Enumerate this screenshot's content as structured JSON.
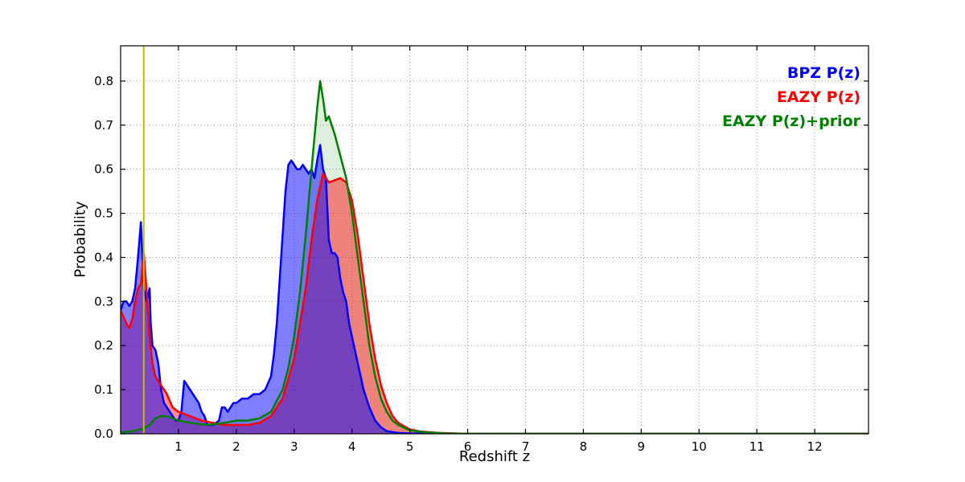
{
  "figure": {
    "background": "#ffffff"
  },
  "chart_data": {
    "type": "area",
    "title": "",
    "xlabel": "Redshift z",
    "ylabel": "Probability",
    "xlim": [
      0,
      12.93
    ],
    "ylim": [
      0,
      0.88
    ],
    "xticks": [
      1,
      2,
      3,
      4,
      5,
      6,
      7,
      8,
      9,
      10,
      11,
      12
    ],
    "xtick_labels": [
      "1",
      "2",
      "3",
      "4",
      "5",
      "6",
      "7",
      "8",
      "9",
      "10",
      "11",
      "12"
    ],
    "yticks": [
      0,
      0.1,
      0.2,
      0.3,
      0.4,
      0.5,
      0.6,
      0.7,
      0.8
    ],
    "ytick_labels": [
      "0.0",
      "0.1",
      "0.2",
      "0.3",
      "0.4",
      "0.5",
      "0.6",
      "0.7",
      "0.8"
    ],
    "grid": true,
    "grid_style": "dotted",
    "grid_color": "#999999",
    "axis_color": "#000000",
    "legend_position": "upper right",
    "marker": {
      "x": 0.4,
      "color": "#bfbf00"
    },
    "series": [
      {
        "id": "bpz",
        "label": "BPZ P(z)",
        "color": "#0000ff",
        "fill_opacity": 0.5,
        "points": [
          [
            0,
            0.28
          ],
          [
            0.05,
            0.3
          ],
          [
            0.1,
            0.3
          ],
          [
            0.15,
            0.29
          ],
          [
            0.2,
            0.3
          ],
          [
            0.25,
            0.33
          ],
          [
            0.3,
            0.4
          ],
          [
            0.35,
            0.48
          ],
          [
            0.4,
            0.33
          ],
          [
            0.45,
            0.3
          ],
          [
            0.5,
            0.33
          ],
          [
            0.52,
            0.25
          ],
          [
            0.55,
            0.2
          ],
          [
            0.6,
            0.19
          ],
          [
            0.65,
            0.16
          ],
          [
            0.7,
            0.1
          ],
          [
            0.75,
            0.07
          ],
          [
            0.8,
            0.06
          ],
          [
            0.85,
            0.05
          ],
          [
            0.9,
            0.04
          ],
          [
            0.95,
            0.03
          ],
          [
            1.0,
            0.03
          ],
          [
            1.05,
            0.05
          ],
          [
            1.1,
            0.12
          ],
          [
            1.15,
            0.11
          ],
          [
            1.2,
            0.1
          ],
          [
            1.25,
            0.09
          ],
          [
            1.3,
            0.08
          ],
          [
            1.35,
            0.07
          ],
          [
            1.4,
            0.05
          ],
          [
            1.45,
            0.04
          ],
          [
            1.5,
            0.02
          ],
          [
            1.6,
            0.02
          ],
          [
            1.7,
            0.03
          ],
          [
            1.75,
            0.06
          ],
          [
            1.8,
            0.06
          ],
          [
            1.85,
            0.05
          ],
          [
            1.9,
            0.06
          ],
          [
            1.95,
            0.07
          ],
          [
            2.0,
            0.07
          ],
          [
            2.1,
            0.08
          ],
          [
            2.2,
            0.08
          ],
          [
            2.3,
            0.09
          ],
          [
            2.4,
            0.09
          ],
          [
            2.5,
            0.1
          ],
          [
            2.6,
            0.13
          ],
          [
            2.65,
            0.18
          ],
          [
            2.7,
            0.25
          ],
          [
            2.75,
            0.35
          ],
          [
            2.8,
            0.45
          ],
          [
            2.85,
            0.55
          ],
          [
            2.9,
            0.61
          ],
          [
            2.95,
            0.62
          ],
          [
            3.0,
            0.61
          ],
          [
            3.05,
            0.6
          ],
          [
            3.1,
            0.6
          ],
          [
            3.15,
            0.61
          ],
          [
            3.2,
            0.6
          ],
          [
            3.25,
            0.59
          ],
          [
            3.3,
            0.6
          ],
          [
            3.35,
            0.58
          ],
          [
            3.4,
            0.62
          ],
          [
            3.45,
            0.655
          ],
          [
            3.5,
            0.6
          ],
          [
            3.55,
            0.58
          ],
          [
            3.6,
            0.44
          ],
          [
            3.65,
            0.41
          ],
          [
            3.7,
            0.41
          ],
          [
            3.75,
            0.4
          ],
          [
            3.8,
            0.35
          ],
          [
            3.85,
            0.32
          ],
          [
            3.9,
            0.3
          ],
          [
            3.95,
            0.25
          ],
          [
            4.0,
            0.22
          ],
          [
            4.1,
            0.16
          ],
          [
            4.2,
            0.1
          ],
          [
            4.3,
            0.06
          ],
          [
            4.4,
            0.03
          ],
          [
            4.5,
            0.015
          ],
          [
            4.6,
            0.006
          ],
          [
            4.8,
            0.002
          ],
          [
            5.0,
            0.001
          ],
          [
            5.5,
            0
          ],
          [
            13,
            0
          ]
        ]
      },
      {
        "id": "eazy",
        "label": "EAZY P(z)",
        "color": "#ff0000",
        "fill_opacity": 0.45,
        "points": [
          [
            0,
            0.28
          ],
          [
            0.1,
            0.25
          ],
          [
            0.15,
            0.24
          ],
          [
            0.2,
            0.26
          ],
          [
            0.25,
            0.3
          ],
          [
            0.3,
            0.33
          ],
          [
            0.35,
            0.34
          ],
          [
            0.4,
            0.41
          ],
          [
            0.45,
            0.32
          ],
          [
            0.5,
            0.22
          ],
          [
            0.55,
            0.16
          ],
          [
            0.6,
            0.13
          ],
          [
            0.7,
            0.11
          ],
          [
            0.8,
            0.09
          ],
          [
            0.9,
            0.06
          ],
          [
            1.0,
            0.05
          ],
          [
            1.2,
            0.04
          ],
          [
            1.4,
            0.03
          ],
          [
            1.6,
            0.025
          ],
          [
            1.8,
            0.02
          ],
          [
            2.0,
            0.02
          ],
          [
            2.2,
            0.02
          ],
          [
            2.4,
            0.025
          ],
          [
            2.6,
            0.04
          ],
          [
            2.8,
            0.08
          ],
          [
            3.0,
            0.17
          ],
          [
            3.1,
            0.25
          ],
          [
            3.2,
            0.33
          ],
          [
            3.3,
            0.44
          ],
          [
            3.4,
            0.53
          ],
          [
            3.5,
            0.59
          ],
          [
            3.6,
            0.57
          ],
          [
            3.7,
            0.575
          ],
          [
            3.8,
            0.58
          ],
          [
            3.9,
            0.57
          ],
          [
            4.0,
            0.53
          ],
          [
            4.1,
            0.45
          ],
          [
            4.2,
            0.35
          ],
          [
            4.3,
            0.25
          ],
          [
            4.4,
            0.17
          ],
          [
            4.5,
            0.11
          ],
          [
            4.6,
            0.07
          ],
          [
            4.7,
            0.04
          ],
          [
            4.8,
            0.025
          ],
          [
            5.0,
            0.01
          ],
          [
            5.2,
            0.005
          ],
          [
            5.5,
            0.002
          ],
          [
            6.0,
            0
          ],
          [
            13,
            0
          ]
        ]
      },
      {
        "id": "eazy-prior",
        "label": "EAZY P(z)+prior",
        "color": "#008000",
        "fill_opacity": 0.13,
        "points": [
          [
            0,
            0.003
          ],
          [
            0.2,
            0.006
          ],
          [
            0.4,
            0.012
          ],
          [
            0.5,
            0.02
          ],
          [
            0.6,
            0.035
          ],
          [
            0.7,
            0.04
          ],
          [
            0.8,
            0.04
          ],
          [
            0.9,
            0.035
          ],
          [
            1.0,
            0.03
          ],
          [
            1.2,
            0.025
          ],
          [
            1.5,
            0.02
          ],
          [
            1.8,
            0.025
          ],
          [
            2.0,
            0.03
          ],
          [
            2.2,
            0.03
          ],
          [
            2.4,
            0.035
          ],
          [
            2.6,
            0.05
          ],
          [
            2.8,
            0.1
          ],
          [
            2.9,
            0.15
          ],
          [
            3.0,
            0.22
          ],
          [
            3.1,
            0.32
          ],
          [
            3.2,
            0.45
          ],
          [
            3.3,
            0.6
          ],
          [
            3.4,
            0.74
          ],
          [
            3.45,
            0.8
          ],
          [
            3.5,
            0.76
          ],
          [
            3.55,
            0.71
          ],
          [
            3.6,
            0.72
          ],
          [
            3.65,
            0.7
          ],
          [
            3.7,
            0.68
          ],
          [
            3.8,
            0.63
          ],
          [
            3.9,
            0.58
          ],
          [
            4.0,
            0.5
          ],
          [
            4.1,
            0.4
          ],
          [
            4.2,
            0.3
          ],
          [
            4.3,
            0.2
          ],
          [
            4.4,
            0.13
          ],
          [
            4.5,
            0.08
          ],
          [
            4.6,
            0.05
          ],
          [
            4.7,
            0.03
          ],
          [
            4.8,
            0.02
          ],
          [
            5.0,
            0.008
          ],
          [
            5.3,
            0.003
          ],
          [
            5.6,
            0.001
          ],
          [
            6.0,
            0
          ],
          [
            13,
            0
          ]
        ]
      }
    ]
  }
}
